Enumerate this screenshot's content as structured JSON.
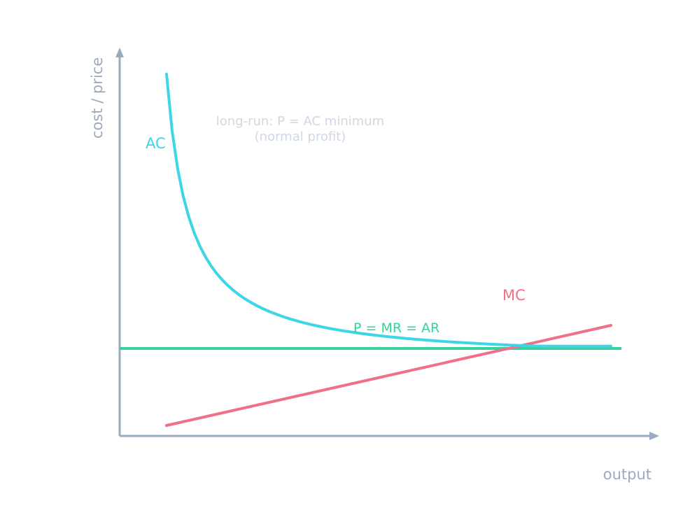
{
  "axes": {
    "x_label": "output",
    "y_label": "cost / price",
    "color": "#9aabbf"
  },
  "annotation": {
    "line1": "long-run: P = AC minimum",
    "line2": "(normal profit)",
    "color": "#cfd8e3"
  },
  "curves": {
    "ac": {
      "label": "AC",
      "color": "#3dd6e6"
    },
    "mc": {
      "label": "MC",
      "color": "#f07088"
    },
    "price": {
      "label": "P = MR = AR",
      "color": "#34d399"
    }
  }
}
